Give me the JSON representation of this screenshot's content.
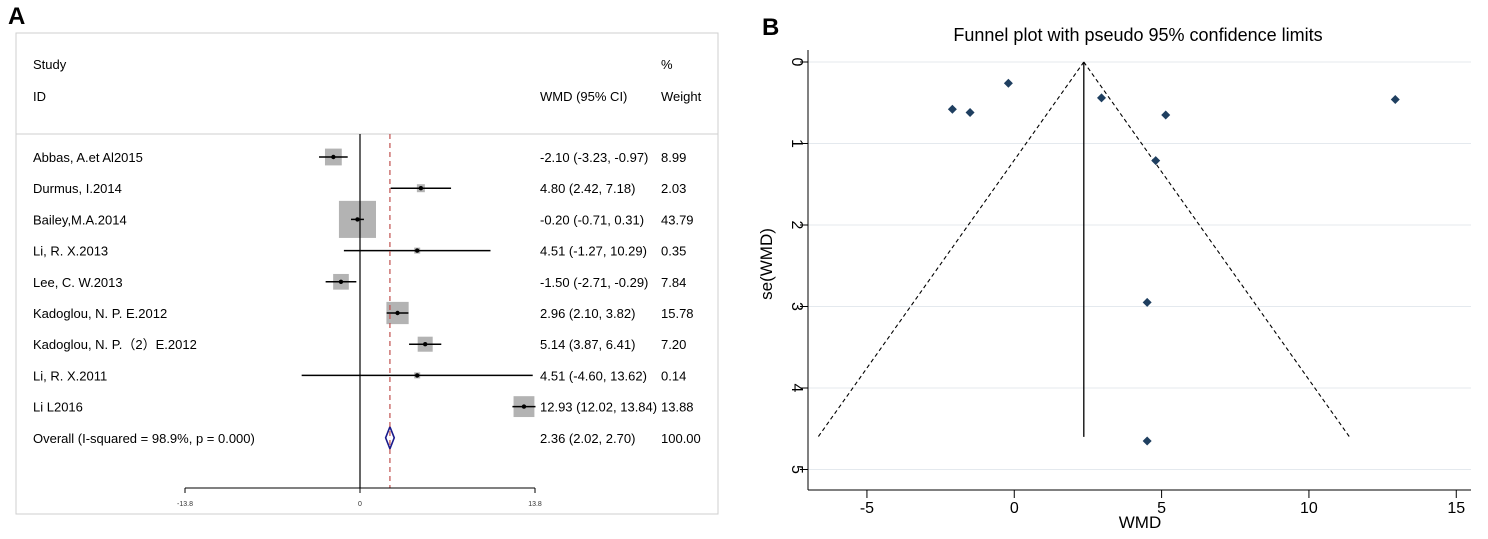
{
  "panels": {
    "a_label": "A",
    "b_label": "B"
  },
  "chart_data": [
    {
      "type": "forest",
      "headers": {
        "study": "Study",
        "id": "ID",
        "ci": "WMD (95% CI)",
        "pct": "%",
        "weight": "Weight"
      },
      "studies": [
        {
          "id": "Abbas, A.et Al2015",
          "wmd": -2.1,
          "lo": -3.23,
          "hi": -0.97,
          "ci_text": "-2.10 (-3.23, -0.97)",
          "weight": 8.99,
          "weight_text": "8.99"
        },
        {
          "id": "Durmus, I.2014",
          "wmd": 4.8,
          "lo": 2.42,
          "hi": 7.18,
          "ci_text": "4.80 (2.42, 7.18)",
          "weight": 2.03,
          "weight_text": "2.03"
        },
        {
          "id": "Bailey,M.A.2014",
          "wmd": -0.2,
          "lo": -0.71,
          "hi": 0.31,
          "ci_text": "-0.20 (-0.71, 0.31)",
          "weight": 43.79,
          "weight_text": "43.79"
        },
        {
          "id": "Li, R. X.2013",
          "wmd": 4.51,
          "lo": -1.27,
          "hi": 10.29,
          "ci_text": "4.51 (-1.27, 10.29)",
          "weight": 0.35,
          "weight_text": "0.35"
        },
        {
          "id": "Lee, C. W.2013",
          "wmd": -1.5,
          "lo": -2.71,
          "hi": -0.29,
          "ci_text": "-1.50 (-2.71, -0.29)",
          "weight": 7.84,
          "weight_text": "7.84"
        },
        {
          "id": "Kadoglou, N. P. E.2012",
          "wmd": 2.96,
          "lo": 2.1,
          "hi": 3.82,
          "ci_text": "2.96 (2.10, 3.82)",
          "weight": 15.78,
          "weight_text": "15.78"
        },
        {
          "id": "Kadoglou, N. P.（2）E.2012",
          "wmd": 5.14,
          "lo": 3.87,
          "hi": 6.41,
          "ci_text": "5.14 (3.87, 6.41)",
          "weight": 7.2,
          "weight_text": "7.20"
        },
        {
          "id": "Li, R. X.2011",
          "wmd": 4.51,
          "lo": -4.6,
          "hi": 13.62,
          "ci_text": "4.51 (-4.60, 13.62)",
          "weight": 0.14,
          "weight_text": "0.14"
        },
        {
          "id": "Li L2016",
          "wmd": 12.93,
          "lo": 12.02,
          "hi": 13.84,
          "ci_text": "12.93 (12.02, 13.84)",
          "weight": 13.88,
          "weight_text": "13.88"
        }
      ],
      "overall": {
        "label": "Overall  (I-squared = 98.9%, p = 0.000)",
        "wmd": 2.36,
        "lo": 2.02,
        "hi": 2.7,
        "ci_text": "2.36 (2.02, 2.70)",
        "weight_text": "100.00"
      },
      "x_ticks": [
        {
          "value": -13.8,
          "label": "-13.8"
        },
        {
          "value": 0,
          "label": "0"
        },
        {
          "value": 13.8,
          "label": "13.8"
        }
      ],
      "xlim": [
        -13.8,
        13.8
      ],
      "null_line": 0,
      "colors": {
        "box": "#b3b3b3",
        "diamond": "#1a1a8c",
        "dashed_line": "#c0504d",
        "line": "#000000"
      }
    },
    {
      "type": "scatter",
      "title": "Funnel plot with pseudo 95% confidence limits",
      "xlabel": "WMD",
      "ylabel": "se(WMD)",
      "xlim": [
        -7,
        15.5
      ],
      "ylim": [
        5,
        0
      ],
      "x_ticks": [
        {
          "value": -5,
          "label": "-5"
        },
        {
          "value": 0,
          "label": "0"
        },
        {
          "value": 5,
          "label": "5"
        },
        {
          "value": 10,
          "label": "10"
        },
        {
          "value": 15,
          "label": "15"
        }
      ],
      "y_ticks": [
        {
          "value": 0,
          "label": "0"
        },
        {
          "value": 1,
          "label": "1"
        },
        {
          "value": 2,
          "label": "2"
        },
        {
          "value": 3,
          "label": "3"
        },
        {
          "value": 4,
          "label": "4"
        },
        {
          "value": 5,
          "label": "5"
        }
      ],
      "grid": "horizontal",
      "points": [
        {
          "x": -2.1,
          "y": 0.58
        },
        {
          "x": 4.8,
          "y": 1.21
        },
        {
          "x": -0.2,
          "y": 0.26
        },
        {
          "x": 4.51,
          "y": 2.95
        },
        {
          "x": -1.5,
          "y": 0.62
        },
        {
          "x": 2.96,
          "y": 0.44
        },
        {
          "x": 5.14,
          "y": 0.65
        },
        {
          "x": 4.51,
          "y": 4.65
        },
        {
          "x": 12.93,
          "y": 0.46
        }
      ],
      "pooled_estimate": 2.36,
      "se_max": 4.6,
      "colors": {
        "marker": "#1f3f60",
        "line": "#000000",
        "grid": "#e4e9ee"
      }
    }
  ]
}
